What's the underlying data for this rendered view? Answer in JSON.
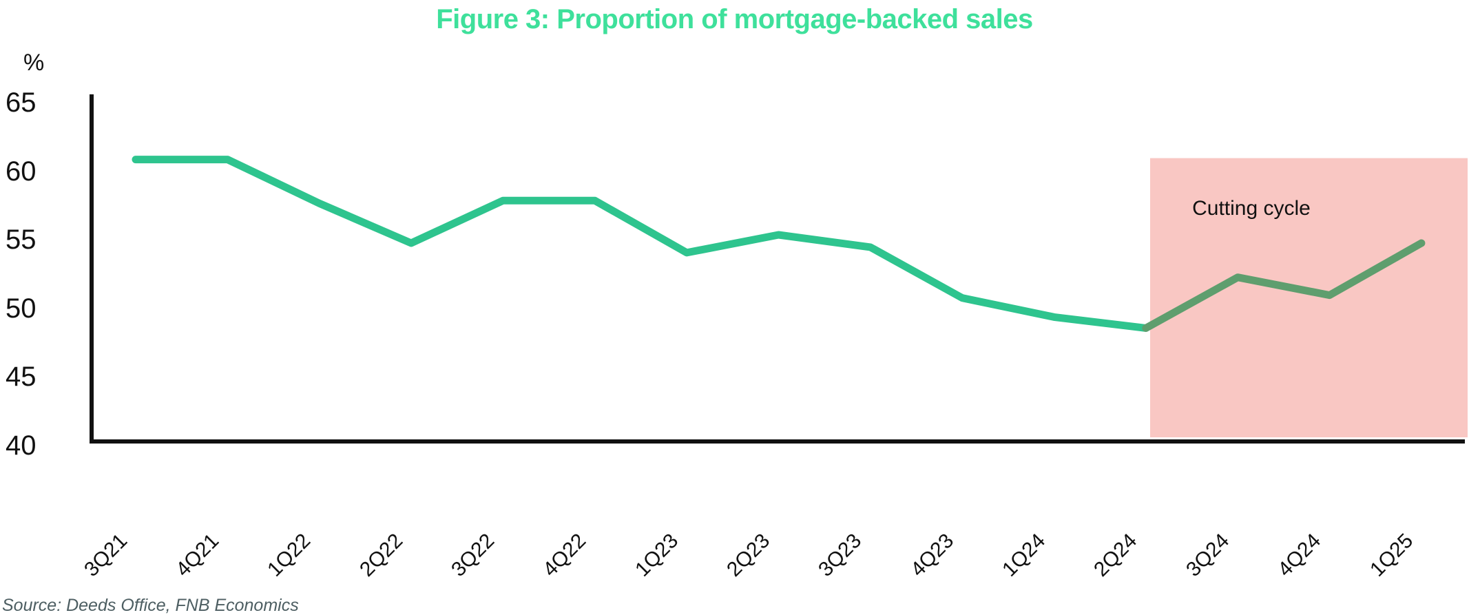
{
  "title": "Figure 3: Proportion of mortgage-backed sales",
  "y_axis_unit": "%",
  "annotation": {
    "label": "Cutting cycle"
  },
  "source": "Source: Deeds Office, FNB Economics",
  "colors": {
    "title": "#3EE09B",
    "line": "#2EC48E",
    "line_in_cutting_cycle": "#5F9E6E",
    "cutting_cycle_fill": "#F9C7C3",
    "axis": "#111111",
    "source_text": "#4D5E62"
  },
  "chart_data": {
    "type": "line",
    "title": "Figure 3: Proportion of mortgage-backed sales",
    "categories": [
      "3Q21",
      "4Q21",
      "1Q22",
      "2Q22",
      "3Q22",
      "4Q22",
      "1Q23",
      "2Q23",
      "3Q23",
      "4Q23",
      "1Q24",
      "2Q24",
      "3Q24",
      "4Q24",
      "1Q25"
    ],
    "series": [
      {
        "name": "Proportion of mortgage-backed sales (%)",
        "values": [
          60.9,
          60.9,
          57.7,
          54.8,
          57.9,
          57.9,
          54.1,
          55.4,
          54.5,
          50.8,
          49.4,
          48.6,
          52.3,
          51.0,
          54.8
        ]
      }
    ],
    "ylabel": "%",
    "ylim": [
      40,
      65
    ],
    "yticks": [
      65,
      60,
      55,
      50,
      45,
      40
    ],
    "grid": false,
    "legend_position": "none",
    "highlight_region": {
      "label": "Cutting cycle",
      "start_category": "2Q24",
      "end_category": "1Q25",
      "top_value": 61
    }
  }
}
